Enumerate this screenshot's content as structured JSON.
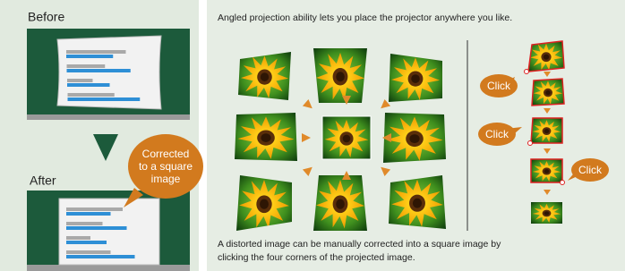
{
  "left": {
    "before": "Before",
    "after": "After",
    "callout": [
      "Corrected",
      "to a square",
      "image"
    ]
  },
  "right": {
    "heading": "Angled projection ability lets you place the projector anywhere you like.",
    "clicks": [
      "Click",
      "Click",
      "Click"
    ],
    "caption": [
      "A distorted image can be manually corrected into a square image by",
      "clicking the four corners of the projected image."
    ]
  }
}
